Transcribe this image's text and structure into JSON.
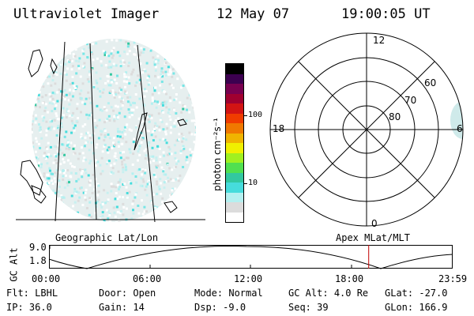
{
  "header": {
    "title": "Ultraviolet Imager",
    "date": "12 May 07",
    "time": "19:00:05 UT"
  },
  "colorbar": {
    "unit_label": "photon cm⁻²s⁻¹",
    "ticks": [
      "100",
      "10"
    ],
    "colors": [
      "#ffffff",
      "#dcdcdc",
      "#b4f0f0",
      "#46dcdc",
      "#32c8a0",
      "#50e050",
      "#a0f020",
      "#f0f000",
      "#f0b400",
      "#f07800",
      "#f03c00",
      "#d21414",
      "#a00030",
      "#780050",
      "#3c0050",
      "#000000"
    ]
  },
  "polar": {
    "lat_labels": [
      "80",
      "70",
      "60"
    ],
    "mlt_labels": {
      "top": "12",
      "left": "18",
      "right": "6",
      "bottom": "0"
    }
  },
  "timeline": {
    "left_label": "Geographic Lat/Lon",
    "right_label": "Apex MLat/MLT",
    "axis_label": "GC Alt",
    "y_ticks": [
      "9.0",
      "1.8"
    ],
    "x_ticks": [
      "00:00",
      "06:00",
      "12:00",
      "18:00",
      "23:59"
    ],
    "current_time_fraction": 0.792
  },
  "footer": {
    "row1": [
      {
        "key": "Flt:",
        "value": "LBHL"
      },
      {
        "key": "Door:",
        "value": "Open"
      },
      {
        "key": "Mode:",
        "value": "Normal"
      },
      {
        "key": "GC Alt:",
        "value": "4.0 Re"
      },
      {
        "key": "GLat:",
        "value": "-27.0"
      }
    ],
    "row2": [
      {
        "key": "IP:",
        "value": "36.0"
      },
      {
        "key": "Gain:",
        "value": "14"
      },
      {
        "key": "Dsp:",
        "value": "-9.0"
      },
      {
        "key": "Seq:",
        "value": "39"
      },
      {
        "key": "GLon:",
        "value": "166.9"
      }
    ]
  }
}
